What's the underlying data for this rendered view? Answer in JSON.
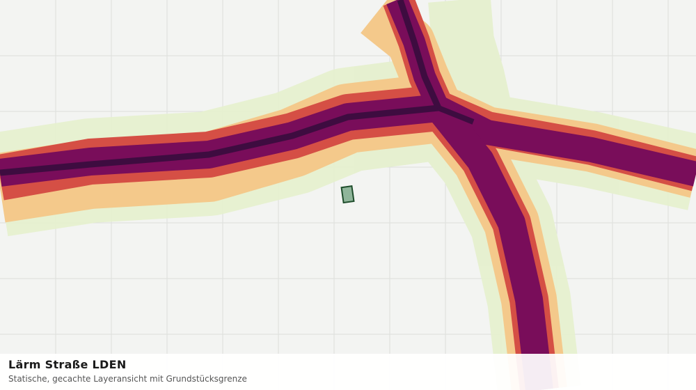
{
  "legend": {
    "title": "Lärm Straße LDEN",
    "subtitle": "Statische, gecachte Layeransicht mit Grundstücksgrenze"
  }
}
